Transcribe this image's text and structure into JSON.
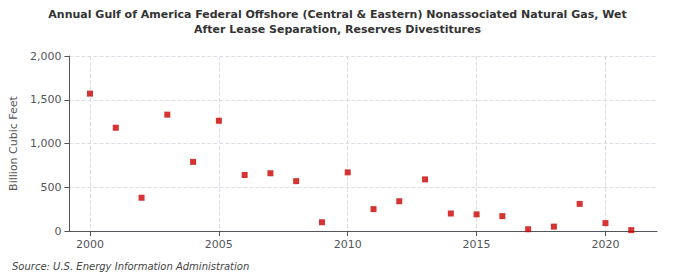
{
  "chart_data": {
    "type": "scatter",
    "title": "Annual Gulf of America Federal Offshore (Central & Eastern) Nonassociated Natural Gas, Wet",
    "subtitle": "After Lease Separation, Reserves Divestitures",
    "ylabel": "Billion Cubic Feet",
    "annotations": [
      "Source: U.S. Energy Information Administration"
    ],
    "x": [
      2000,
      2001,
      2002,
      2003,
      2004,
      2005,
      2006,
      2007,
      2008,
      2009,
      2010,
      2011,
      2012,
      2013,
      2014,
      2015,
      2016,
      2017,
      2018,
      2019,
      2020,
      2021
    ],
    "values": [
      1570,
      1180,
      380,
      1330,
      790,
      1260,
      640,
      660,
      570,
      100,
      670,
      250,
      340,
      590,
      200,
      190,
      170,
      20,
      50,
      310,
      90,
      10
    ],
    "color": "#cc0000",
    "marker": "square",
    "xlim": [
      1999.2,
      2022
    ],
    "xticks": [
      2000,
      2005,
      2010,
      2015,
      2020
    ],
    "ylim": [
      0,
      2000
    ],
    "yticks": [
      0,
      500,
      {
        "value": 1000,
        "label": "1,000"
      },
      {
        "value": 1500,
        "label": "1,500"
      },
      {
        "value": 2000,
        "label": "2,000"
      }
    ],
    "grid": true
  }
}
